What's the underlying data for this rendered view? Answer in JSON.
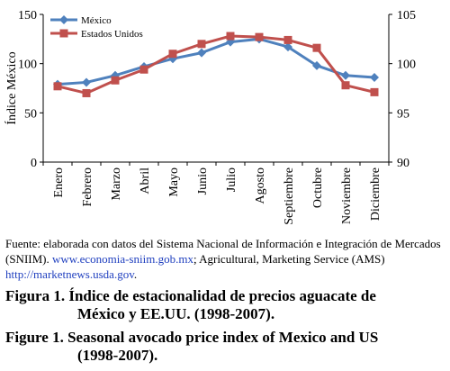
{
  "chart_data": {
    "type": "line",
    "categories": [
      "Enero",
      "Febrero",
      "Marzo",
      "Abril",
      "Mayo",
      "Junio",
      "Julio",
      "Agosto",
      "Septiembre",
      "Octubre",
      "Noviembre",
      "Diciembre"
    ],
    "ylabel": "Índice México",
    "y_left_range": [
      0,
      150
    ],
    "y_left_ticks": [
      "0",
      "50",
      "100",
      "150"
    ],
    "y_right_range": [
      90,
      105
    ],
    "y_right_ticks": [
      "90",
      "95",
      "100",
      "105"
    ],
    "legend_position": "top-left",
    "series": [
      {
        "name": "México",
        "axis": "left",
        "color": "#4f81bd",
        "marker": "diamond",
        "values": [
          79,
          81,
          88,
          97,
          105,
          111,
          122,
          125,
          117,
          98,
          88,
          86
        ]
      },
      {
        "name": "Estados Unidos",
        "axis": "right",
        "color": "#c0504d",
        "marker": "square",
        "values": [
          97.7,
          97.0,
          98.3,
          99.4,
          101.0,
          102.0,
          102.8,
          102.7,
          102.4,
          101.6,
          97.8,
          97.1
        ]
      }
    ]
  },
  "source_note": {
    "prefix": "Fuente: elaborada con datos del Sistema Nacional de Información e Integración de Mercados (SNIIM).",
    "link1": "www.economia-sniim.gob.mx",
    "middle": "; Agricultural, Marketing Service (AMS)",
    "link2": "http://marketnews.usda.gov",
    "suffix": "."
  },
  "caption_es": {
    "line1": "Figura 1. Índice de estacionalidad de precios aguacate de",
    "line2": "México y EE.UU. (1998-2007)."
  },
  "caption_en": {
    "line1": "Figure 1. Seasonal avocado price index of Mexico and US",
    "line2": "(1998-2007)."
  }
}
